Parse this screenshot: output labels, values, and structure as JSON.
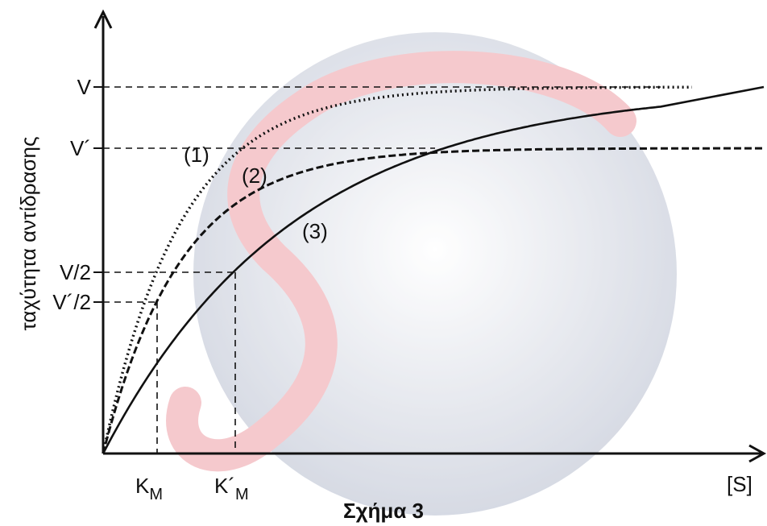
{
  "y_axis_label": "ταχύτητα αντίδρασης",
  "y_labels": [
    "V",
    "V´",
    "V/2",
    "V´/2"
  ],
  "curve_labels": [
    "(1)",
    "(2)",
    "(3)"
  ],
  "x_labels": [
    {
      "main": "K",
      "sub": "M"
    },
    {
      "main": "K´",
      "sub": "M"
    }
  ],
  "x_axis_label": "[S]",
  "caption": "Σχήμα 3"
}
